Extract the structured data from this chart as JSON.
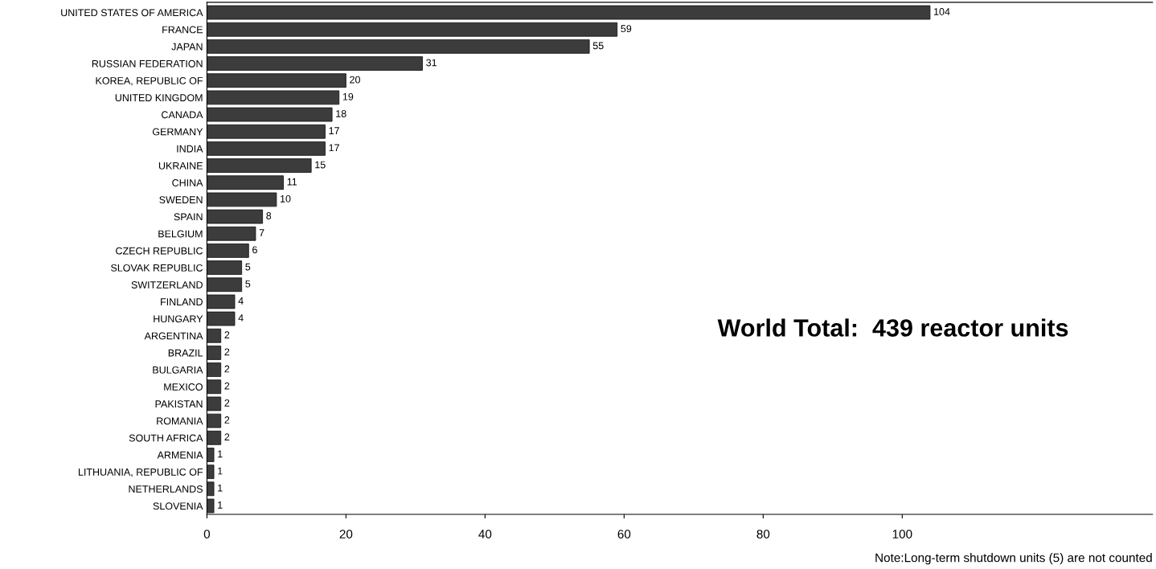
{
  "chart_data": {
    "type": "bar",
    "orientation": "horizontal",
    "categories": [
      "UNITED STATES OF AMERICA",
      "FRANCE",
      "JAPAN",
      "RUSSIAN FEDERATION",
      "KOREA, REPUBLIC OF",
      "UNITED KINGDOM",
      "CANADA",
      "GERMANY",
      "INDIA",
      "UKRAINE",
      "CHINA",
      "SWEDEN",
      "SPAIN",
      "BELGIUM",
      "CZECH REPUBLIC",
      "SLOVAK REPUBLIC",
      "SWITZERLAND",
      "FINLAND",
      "HUNGARY",
      "ARGENTINA",
      "BRAZIL",
      "BULGARIA",
      "MEXICO",
      "PAKISTAN",
      "ROMANIA",
      "SOUTH AFRICA",
      "ARMENIA",
      "LITHUANIA, REPUBLIC OF",
      "NETHERLANDS",
      "SLOVENIA"
    ],
    "values": [
      104,
      59,
      55,
      31,
      20,
      19,
      18,
      17,
      17,
      15,
      11,
      10,
      8,
      7,
      6,
      5,
      5,
      4,
      4,
      2,
      2,
      2,
      2,
      2,
      2,
      2,
      1,
      1,
      1,
      1
    ],
    "color": "#3c3c3c",
    "data_labels": true,
    "xlim": [
      0,
      136
    ],
    "xticks": [
      0,
      20,
      40,
      60,
      80,
      100
    ],
    "grid": false,
    "annotations": [
      "World Total:  439 reactor units",
      "Note:Long-term shutdown units (5) are not counted"
    ]
  }
}
